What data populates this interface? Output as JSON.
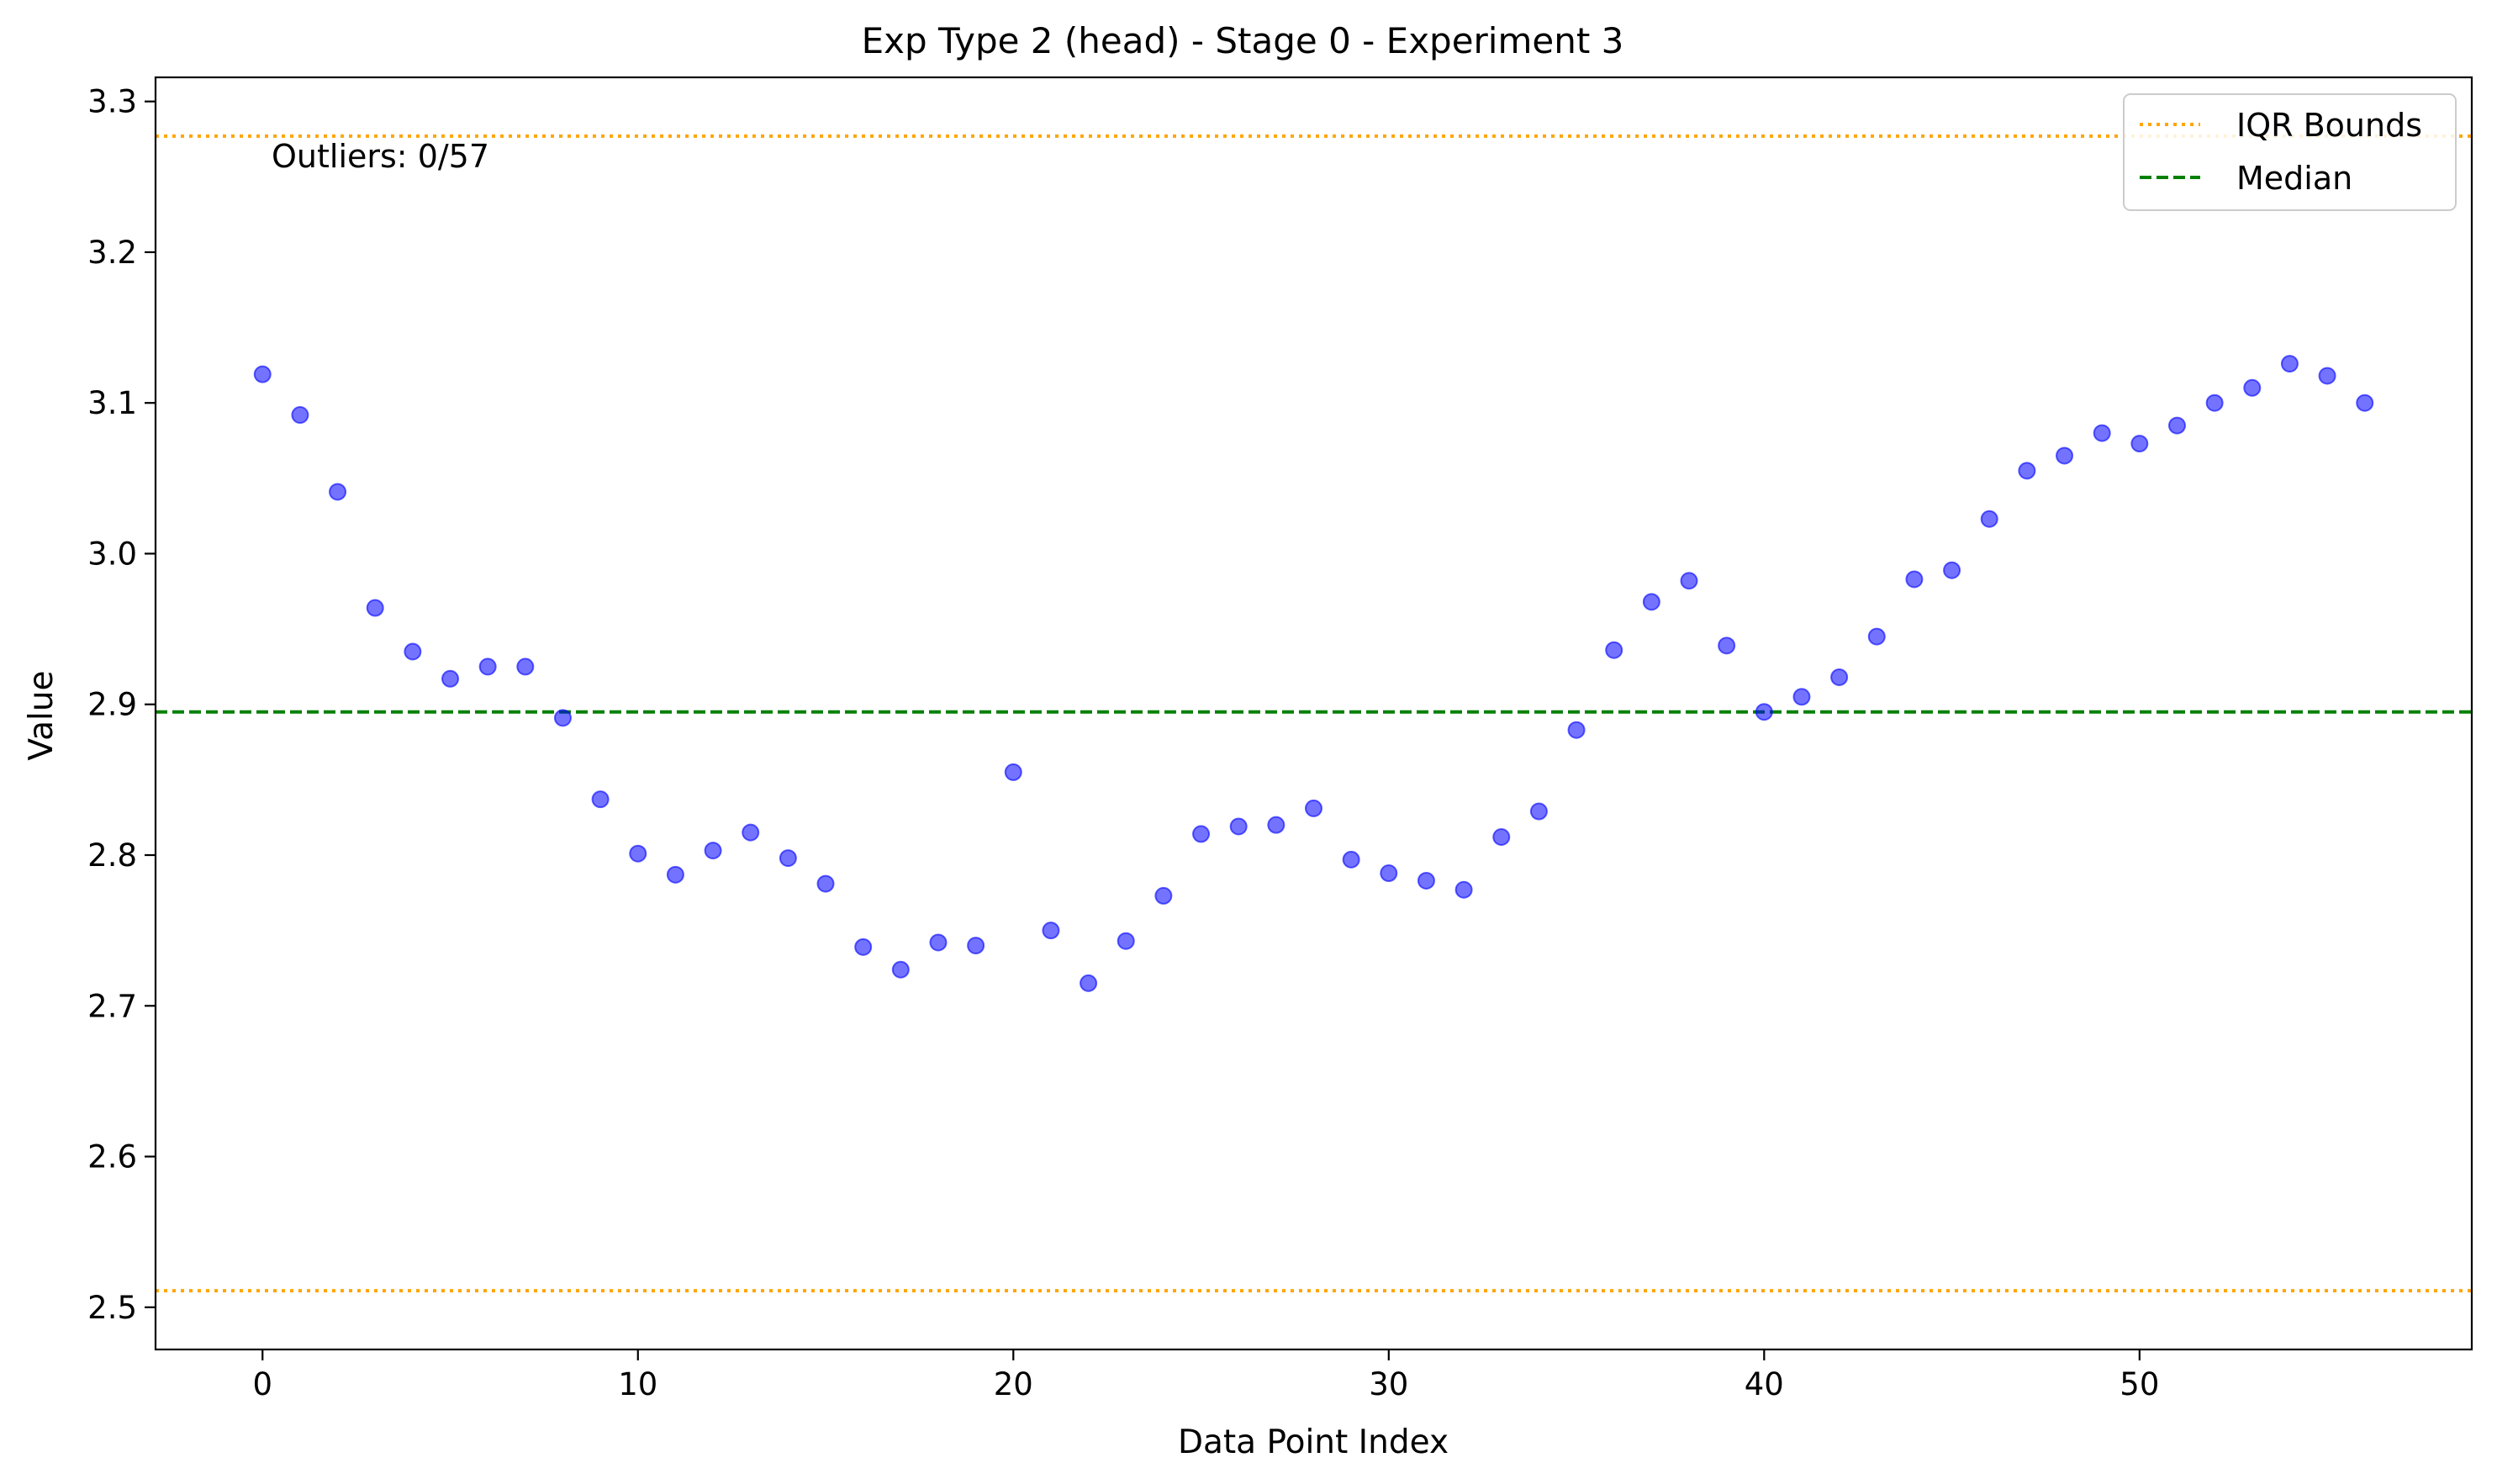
{
  "chart_data": {
    "type": "scatter",
    "title": "Exp Type 2 (head) - Stage 0 - Experiment 3",
    "xlabel": "Data Point Index",
    "ylabel": "Value",
    "xlim": [
      -2.85,
      58.85
    ],
    "ylim": [
      2.472,
      3.316
    ],
    "xticks": [
      0,
      10,
      20,
      30,
      40,
      50
    ],
    "yticks": [
      2.5,
      2.6,
      2.7,
      2.8,
      2.9,
      3.0,
      3.1,
      3.2,
      3.3
    ],
    "ytick_labels": [
      "2.5",
      "2.6",
      "2.7",
      "2.8",
      "2.9",
      "3.0",
      "3.1",
      "3.2",
      "3.3"
    ],
    "grid": false,
    "legend_position": "top-right",
    "annotation": "Outliers: 0/57",
    "point_color": "#0000ff",
    "iqr_color": "#ffa500",
    "median_color": "#008000",
    "iqr_bounds": [
      2.511,
      3.277
    ],
    "median": 2.895,
    "legend": [
      {
        "label": "IQR Bounds",
        "style": "dotted",
        "color": "#ffa500"
      },
      {
        "label": "Median",
        "style": "dashed",
        "color": "#008000"
      }
    ],
    "x": [
      0,
      1,
      2,
      3,
      4,
      5,
      6,
      7,
      8,
      9,
      10,
      11,
      12,
      13,
      14,
      15,
      16,
      17,
      18,
      19,
      20,
      21,
      22,
      23,
      24,
      25,
      26,
      27,
      28,
      29,
      30,
      31,
      32,
      33,
      34,
      35,
      36,
      37,
      38,
      39,
      40,
      41,
      42,
      43,
      44,
      45,
      46,
      47,
      48,
      49,
      50,
      51,
      52,
      53,
      54,
      55,
      56
    ],
    "y": [
      3.119,
      3.092,
      3.041,
      2.964,
      2.935,
      2.917,
      2.925,
      2.925,
      2.891,
      2.837,
      2.801,
      2.787,
      2.803,
      2.815,
      2.798,
      2.781,
      2.739,
      2.724,
      2.742,
      2.74,
      2.855,
      2.75,
      2.715,
      2.743,
      2.773,
      2.814,
      2.819,
      2.82,
      2.831,
      2.797,
      2.788,
      2.783,
      2.777,
      2.812,
      2.829,
      2.883,
      2.936,
      2.968,
      2.982,
      2.939,
      2.895,
      2.905,
      2.918,
      2.945,
      2.983,
      2.989,
      3.023,
      3.055,
      3.065,
      3.08,
      3.073,
      3.085,
      3.1,
      3.11,
      3.126,
      3.118,
      3.1
    ]
  }
}
